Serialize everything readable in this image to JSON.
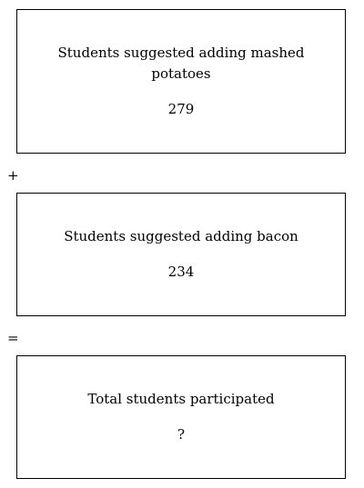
{
  "boxes": [
    {
      "label": "Students suggested adding mashed potatoes",
      "value": "279"
    },
    {
      "label": "Students suggested adding bacon",
      "value": "234"
    },
    {
      "label": "Total students participated",
      "value": "?"
    }
  ],
  "operators": {
    "plus": "+",
    "equals": "="
  }
}
